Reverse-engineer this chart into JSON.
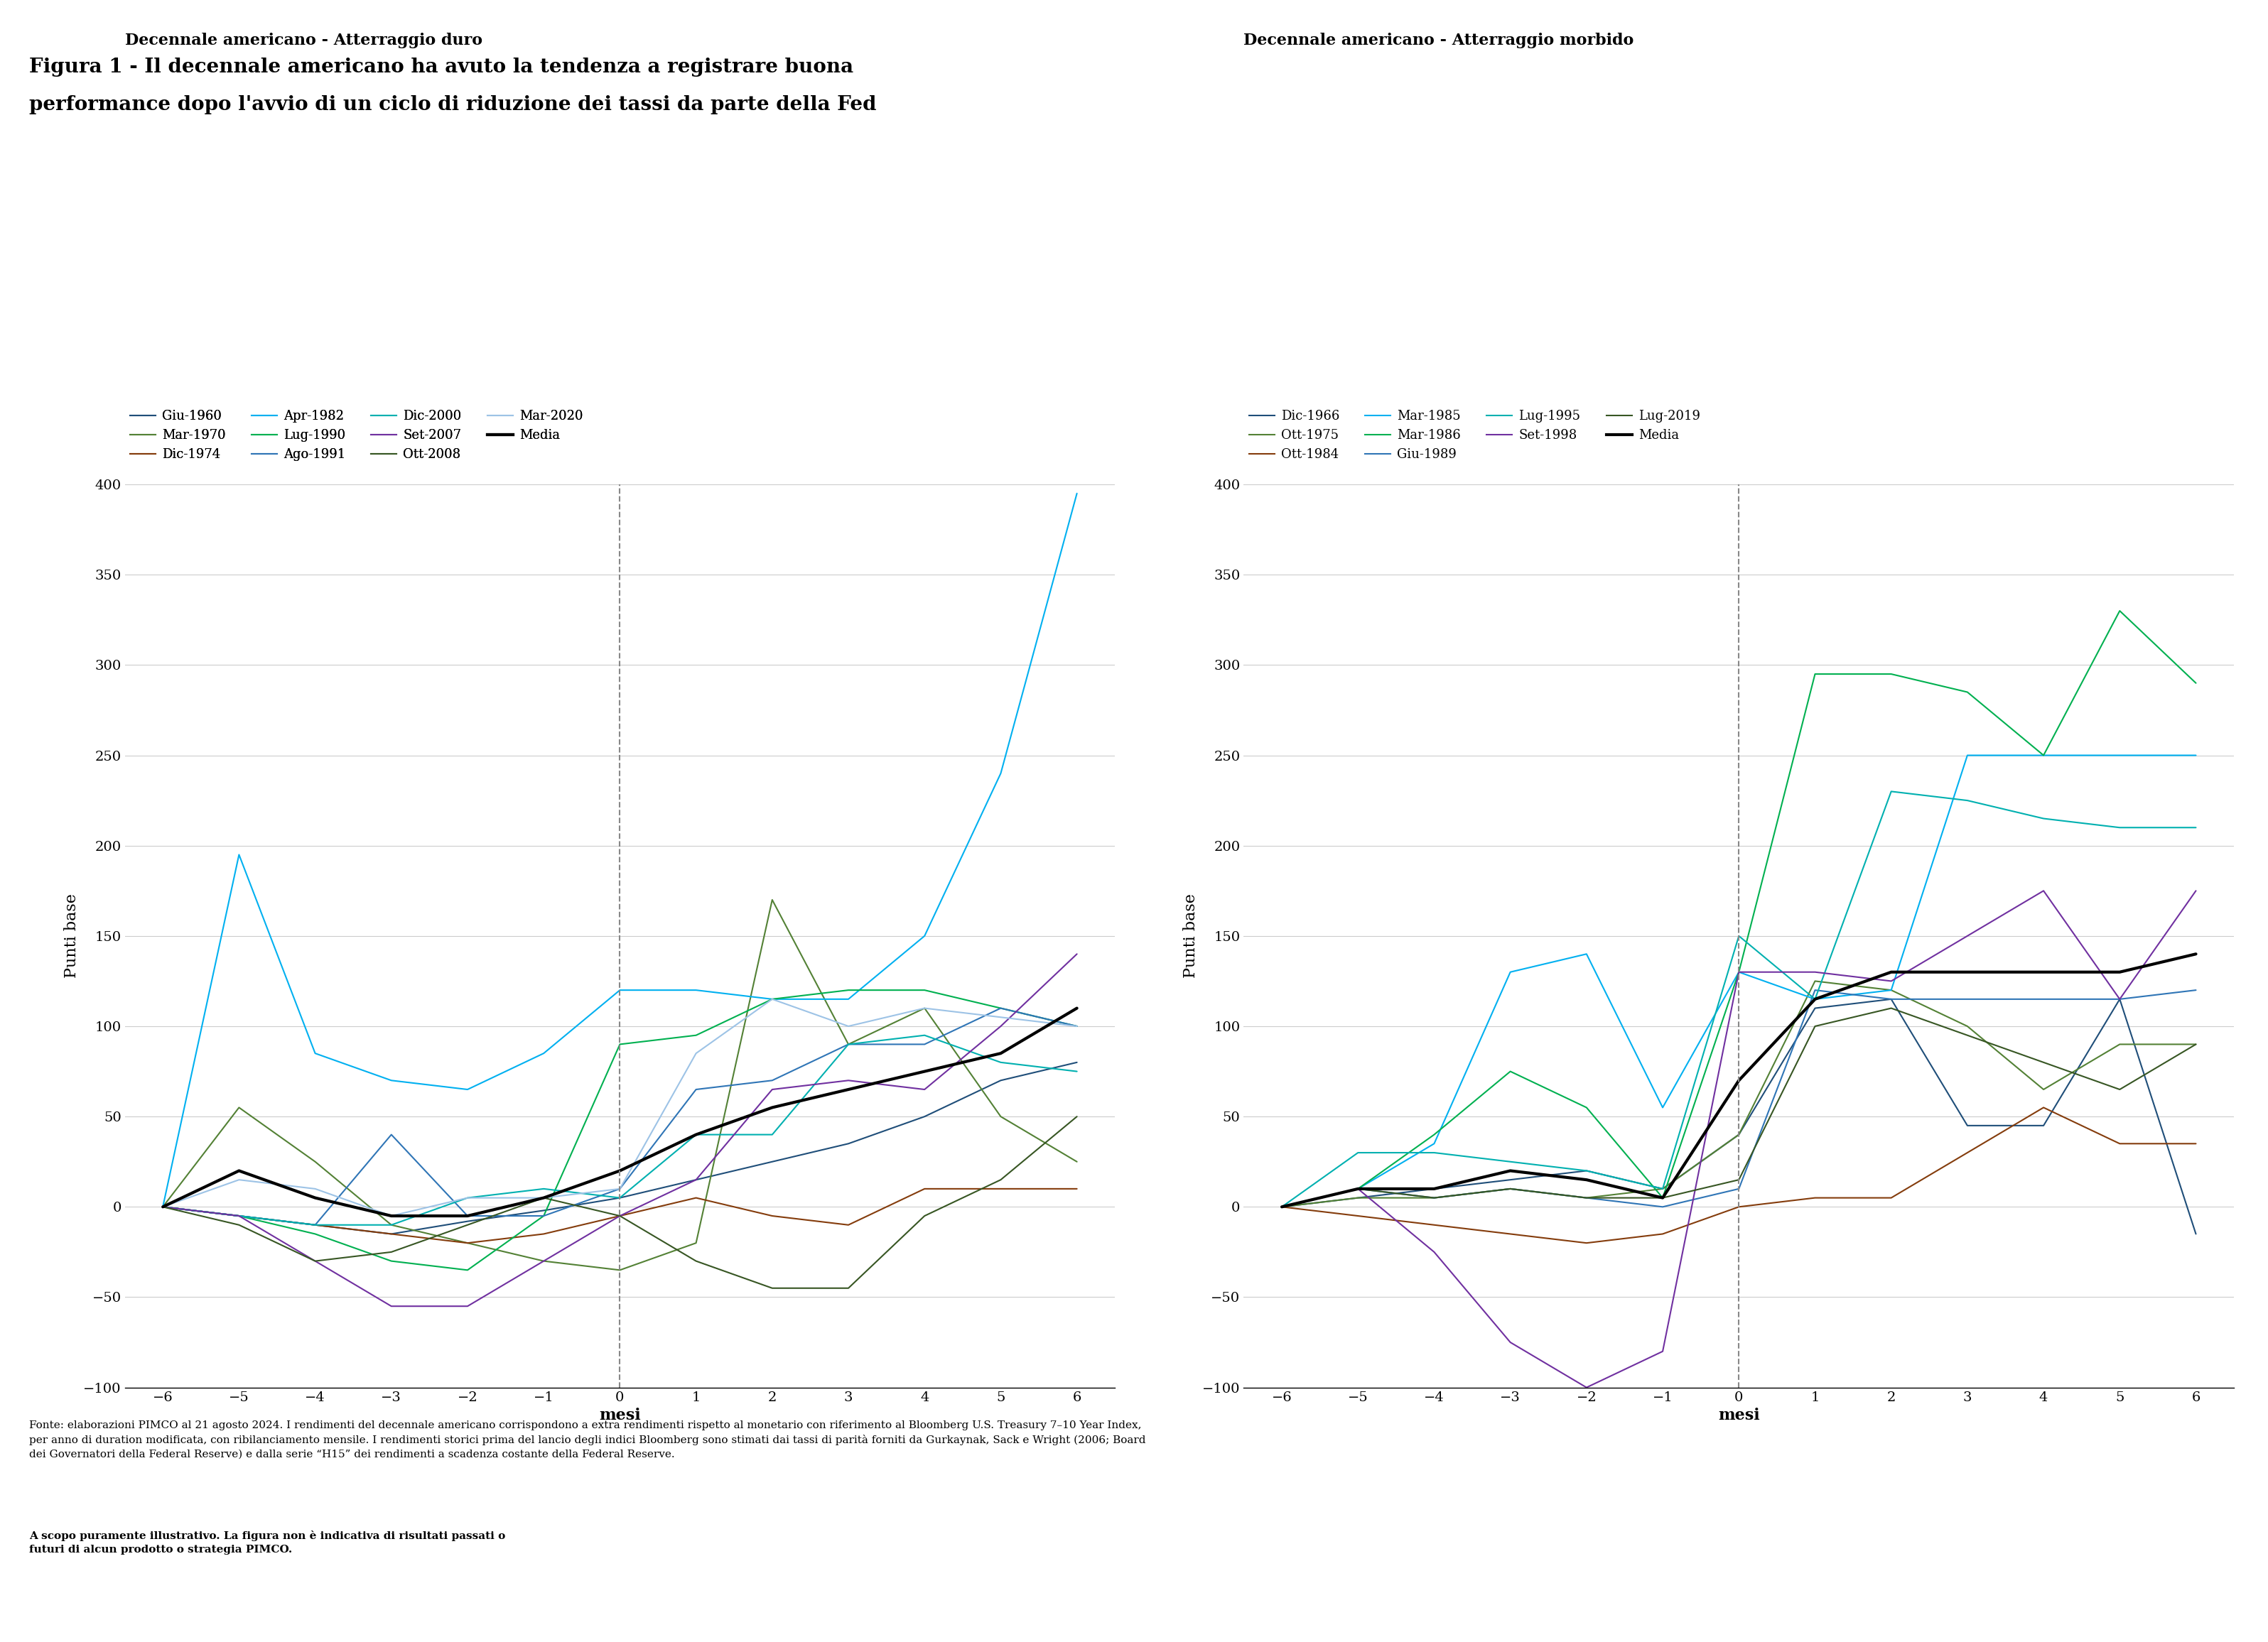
{
  "title_line1": "Figura 1 - Il decennale americano ha avuto la tendenza a registrare buona",
  "title_line2": "performance dopo l'avvio di un ciclo di riduzione dei tassi da parte della Fed",
  "subtitle_left": "Decennale americano - Atterraggio duro",
  "subtitle_right": "Decennale americano - Atterraggio morbido",
  "xlabel": "mesi",
  "ylabel": "Punti base",
  "x_ticks": [
    -6,
    -5,
    -4,
    -3,
    -2,
    -1,
    0,
    1,
    2,
    3,
    4,
    5,
    6
  ],
  "ylim": [
    -100,
    400
  ],
  "y_ticks": [
    -100,
    -50,
    0,
    50,
    100,
    150,
    200,
    250,
    300,
    350,
    400
  ],
  "footnote_normal": "Fonte: elaborazioni PIMCO al 21 agosto 2024. I rendimenti del decennale americano corrispondono a extra rendimenti rispetto al monetario con riferimento al Bloomberg U.S. Treasury 7–10 Year Index,\nper anno di duration modificata, con ribilanciamento mensile. I rendimenti storici prima del lancio degli indici Bloomberg sono stimati dai tassi di parità forniti da Gurkaynak, Sack e Wright (2006; Board\ndei Governatori della Federal Reserve) e dalla serie “H15” dei rendimenti a scadenza costante della Federal Reserve. ",
  "footnote_bold": "A scopo puramente illustrativo. La figura non è indicativa di risultati passati o\nfuturi di alcun prodotto o strategia PIMCO.",
  "hard_landing": {
    "legend_row1": [
      "Giu-1960",
      "Mar-1970",
      "Dic-1974",
      "Apr-1982"
    ],
    "legend_row2": [
      "Lug-1990",
      "Ago-1991",
      "Dic-2000",
      "Set-2007"
    ],
    "legend_row3": [
      "Ott-2008",
      "Mar-2020",
      "Media"
    ],
    "series": [
      {
        "label": "Giu-1960",
        "color": "#1f4e79",
        "lw": 1.5,
        "data": [
          0,
          -5,
          -10,
          -15,
          -8,
          -2,
          5,
          15,
          25,
          35,
          50,
          70,
          80
        ]
      },
      {
        "label": "Mar-1970",
        "color": "#538135",
        "lw": 1.5,
        "data": [
          0,
          55,
          25,
          -10,
          -20,
          -30,
          -35,
          -20,
          170,
          90,
          110,
          50,
          25
        ]
      },
      {
        "label": "Dic-1974",
        "color": "#843c0c",
        "lw": 1.5,
        "data": [
          0,
          -5,
          -10,
          -15,
          -20,
          -15,
          -5,
          5,
          -5,
          -10,
          10,
          10,
          10
        ]
      },
      {
        "label": "Apr-1982",
        "color": "#00b0f0",
        "lw": 1.5,
        "data": [
          0,
          195,
          85,
          70,
          65,
          85,
          120,
          120,
          115,
          115,
          150,
          240,
          395
        ]
      },
      {
        "label": "Lug-1990",
        "color": "#00b050",
        "lw": 1.5,
        "data": [
          0,
          -5,
          -15,
          -30,
          -35,
          -5,
          90,
          95,
          115,
          120,
          120,
          110,
          100
        ]
      },
      {
        "label": "Ago-1991",
        "color": "#2f75b6",
        "lw": 1.5,
        "data": [
          0,
          -5,
          -10,
          40,
          -5,
          -5,
          10,
          65,
          70,
          90,
          90,
          110,
          100
        ]
      },
      {
        "label": "Dic-2000",
        "color": "#00b0b0",
        "lw": 1.5,
        "data": [
          0,
          -5,
          -10,
          -10,
          5,
          10,
          5,
          40,
          40,
          90,
          95,
          80,
          75
        ]
      },
      {
        "label": "Set-2007",
        "color": "#7030a0",
        "lw": 1.5,
        "data": [
          0,
          -5,
          -30,
          -55,
          -55,
          -30,
          -5,
          15,
          65,
          70,
          65,
          100,
          140
        ]
      },
      {
        "label": "Ott-2008",
        "color": "#375623",
        "lw": 1.5,
        "data": [
          0,
          -10,
          -30,
          -25,
          -10,
          5,
          -5,
          -30,
          -45,
          -45,
          -5,
          15,
          50
        ]
      },
      {
        "label": "Mar-2020",
        "color": "#9dc3e6",
        "lw": 1.5,
        "data": [
          0,
          15,
          10,
          -5,
          5,
          5,
          10,
          85,
          115,
          100,
          110,
          105,
          100
        ]
      },
      {
        "label": "Media",
        "color": "#000000",
        "lw": 3.0,
        "data": [
          0,
          20,
          5,
          -5,
          -5,
          5,
          20,
          40,
          55,
          65,
          75,
          85,
          110
        ]
      }
    ]
  },
  "soft_landing": {
    "legend_row1": [
      "Dic-1966",
      "Ott-1975",
      "Ott-1984",
      "Mar-1985"
    ],
    "legend_row2": [
      "Mar-1986",
      "Giu-1989",
      "Lug-1995",
      "Set-1998"
    ],
    "legend_row3": [
      "Lug-2019",
      "Media"
    ],
    "series": [
      {
        "label": "Dic-1966",
        "color": "#1f4e79",
        "lw": 1.5,
        "data": [
          0,
          5,
          10,
          15,
          20,
          10,
          40,
          110,
          115,
          45,
          45,
          115,
          -15
        ]
      },
      {
        "label": "Ott-1975",
        "color": "#538135",
        "lw": 1.5,
        "data": [
          0,
          5,
          5,
          10,
          5,
          10,
          40,
          125,
          120,
          100,
          65,
          90,
          90
        ]
      },
      {
        "label": "Ott-1984",
        "color": "#843c0c",
        "lw": 1.5,
        "data": [
          0,
          -5,
          -10,
          -15,
          -20,
          -15,
          0,
          5,
          5,
          30,
          55,
          35,
          35
        ]
      },
      {
        "label": "Mar-1985",
        "color": "#00b0f0",
        "lw": 1.5,
        "data": [
          0,
          10,
          35,
          130,
          140,
          55,
          130,
          115,
          120,
          250,
          250,
          250,
          250
        ]
      },
      {
        "label": "Mar-1986",
        "color": "#00b050",
        "lw": 1.5,
        "data": [
          0,
          10,
          40,
          75,
          55,
          5,
          130,
          295,
          295,
          285,
          250,
          330,
          290
        ]
      },
      {
        "label": "Giu-1989",
        "color": "#2f75b6",
        "lw": 1.5,
        "data": [
          0,
          10,
          5,
          10,
          5,
          0,
          10,
          120,
          115,
          115,
          115,
          115,
          120
        ]
      },
      {
        "label": "Lug-1995",
        "color": "#00b0b0",
        "lw": 1.5,
        "data": [
          0,
          30,
          30,
          25,
          20,
          10,
          150,
          115,
          230,
          225,
          215,
          210,
          210
        ]
      },
      {
        "label": "Set-1998",
        "color": "#7030a0",
        "lw": 1.5,
        "data": [
          0,
          10,
          -25,
          -75,
          -100,
          -80,
          130,
          130,
          125,
          150,
          175,
          115,
          175
        ]
      },
      {
        "label": "Lug-2019",
        "color": "#375623",
        "lw": 1.5,
        "data": [
          0,
          10,
          5,
          10,
          5,
          5,
          15,
          100,
          110,
          95,
          80,
          65,
          90
        ]
      },
      {
        "label": "Media",
        "color": "#000000",
        "lw": 3.0,
        "data": [
          0,
          10,
          10,
          20,
          15,
          5,
          70,
          115,
          130,
          130,
          130,
          130,
          140
        ]
      }
    ]
  }
}
